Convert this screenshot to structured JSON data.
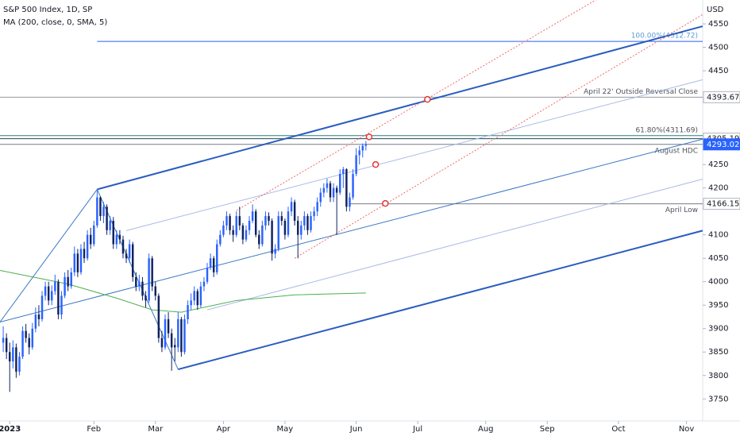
{
  "chart_data": {
    "type": "candlestick",
    "title": "S&P 500 Index, 1D, SP",
    "currency": "USD",
    "up_color": "#2962ff",
    "down_color": "#0f2260",
    "xlim": [
      -1,
      216
    ],
    "ylim": [
      3703,
      4601
    ],
    "xticks": [
      {
        "value": 2,
        "label": "2023"
      },
      {
        "value": 28,
        "label": "Feb"
      },
      {
        "value": 47,
        "label": "Mar"
      },
      {
        "value": 68,
        "label": "Apr"
      },
      {
        "value": 87,
        "label": "May"
      },
      {
        "value": 109,
        "label": "Jun"
      },
      {
        "value": 128,
        "label": "Jul"
      },
      {
        "value": 149,
        "label": "Aug"
      },
      {
        "value": 168,
        "label": "Sep"
      },
      {
        "value": 190,
        "label": "Oct"
      },
      {
        "value": 211,
        "label": "Nov"
      }
    ],
    "yticks": [
      3750,
      3800,
      3850,
      3900,
      3950,
      4000,
      4050,
      4100,
      4200,
      4250,
      4450,
      4500,
      4550
    ],
    "ohlc": [
      [
        3870,
        3905,
        3850,
        3880
      ],
      [
        3880,
        3890,
        3835,
        3850
      ],
      [
        3850,
        3870,
        3765,
        3830
      ],
      [
        3830,
        3875,
        3815,
        3860
      ],
      [
        3860,
        3868,
        3795,
        3808
      ],
      [
        3808,
        3850,
        3800,
        3840
      ],
      [
        3840,
        3905,
        3835,
        3895
      ],
      [
        3895,
        3910,
        3870,
        3880
      ],
      [
        3880,
        3890,
        3845,
        3860
      ],
      [
        3860,
        3912,
        3855,
        3900
      ],
      [
        3900,
        3945,
        3892,
        3930
      ],
      [
        3930,
        3950,
        3905,
        3920
      ],
      [
        3920,
        3980,
        3915,
        3970
      ],
      [
        3970,
        4000,
        3960,
        3990
      ],
      [
        3990,
        4000,
        3950,
        3960
      ],
      [
        3960,
        3992,
        3950,
        3980
      ],
      [
        3980,
        4015,
        3972,
        4000
      ],
      [
        4000,
        4005,
        3920,
        3930
      ],
      [
        3930,
        3980,
        3920,
        3970
      ],
      [
        3970,
        4020,
        3965,
        4010
      ],
      [
        4010,
        4025,
        3980,
        3990
      ],
      [
        3990,
        4030,
        3985,
        4020
      ],
      [
        4020,
        4075,
        4012,
        4060
      ],
      [
        4060,
        4070,
        4010,
        4020
      ],
      [
        4020,
        4080,
        4015,
        4070
      ],
      [
        4070,
        4085,
        4040,
        4050
      ],
      [
        4050,
        4110,
        4045,
        4100
      ],
      [
        4100,
        4115,
        4070,
        4080
      ],
      [
        4080,
        4130,
        4075,
        4120
      ],
      [
        4120,
        4195,
        4115,
        4180
      ],
      [
        4180,
        4182,
        4130,
        4140
      ],
      [
        4140,
        4170,
        4125,
        4160
      ],
      [
        4160,
        4165,
        4100,
        4110
      ],
      [
        4110,
        4140,
        4100,
        4130
      ],
      [
        4130,
        4138,
        4070,
        4080
      ],
      [
        4080,
        4110,
        4070,
        4100
      ],
      [
        4100,
        4110,
        4080,
        4090
      ],
      [
        4090,
        4098,
        4050,
        4060
      ],
      [
        4060,
        4070,
        4040,
        4050
      ],
      [
        4050,
        4090,
        4040,
        4080
      ],
      [
        4080,
        4085,
        4000,
        4010
      ],
      [
        4010,
        4020,
        3980,
        3990
      ],
      [
        3990,
        4015,
        3980,
        4000
      ],
      [
        4000,
        4010,
        3960,
        3970
      ],
      [
        3970,
        3980,
        3945,
        3960
      ],
      [
        3960,
        4060,
        3955,
        4050
      ],
      [
        4050,
        4055,
        3980,
        3990
      ],
      [
        3990,
        4000,
        3960,
        3970
      ],
      [
        3970,
        3975,
        3870,
        3880
      ],
      [
        3880,
        3895,
        3850,
        3860
      ],
      [
        3860,
        3930,
        3855,
        3920
      ],
      [
        3920,
        3935,
        3880,
        3890
      ],
      [
        3890,
        3900,
        3810,
        3860
      ],
      [
        3865,
        3880,
        3830,
        3860
      ],
      [
        3860,
        3935,
        3850,
        3920
      ],
      [
        3920,
        3925,
        3840,
        3850
      ],
      [
        3850,
        3930,
        3845,
        3920
      ],
      [
        3920,
        3960,
        3910,
        3950
      ],
      [
        3950,
        3975,
        3940,
        3960
      ],
      [
        3960,
        3990,
        3950,
        3980
      ],
      [
        3980,
        3985,
        3940,
        3950
      ],
      [
        3950,
        4000,
        3945,
        3990
      ],
      [
        3990,
        4010,
        3980,
        4000
      ],
      [
        4000,
        4040,
        3995,
        4030
      ],
      [
        4030,
        4060,
        4025,
        4050
      ],
      [
        4050,
        4055,
        4010,
        4020
      ],
      [
        4020,
        4090,
        4015,
        4080
      ],
      [
        4080,
        4110,
        4075,
        4100
      ],
      [
        4100,
        4130,
        4095,
        4120
      ],
      [
        4120,
        4150,
        4110,
        4140
      ],
      [
        4140,
        4145,
        4100,
        4110
      ],
      [
        4110,
        4120,
        4085,
        4100
      ],
      [
        4100,
        4150,
        4095,
        4140
      ],
      [
        4140,
        4160,
        4110,
        4120
      ],
      [
        4120,
        4125,
        4080,
        4090
      ],
      [
        4090,
        4120,
        4085,
        4110
      ],
      [
        4110,
        4140,
        4100,
        4130
      ],
      [
        4130,
        4165,
        4125,
        4150
      ],
      [
        4150,
        4155,
        4095,
        4100
      ],
      [
        4100,
        4110,
        4070,
        4080
      ],
      [
        4080,
        4130,
        4075,
        4120
      ],
      [
        4120,
        4150,
        4110,
        4140
      ],
      [
        4140,
        4148,
        4120,
        4130
      ],
      [
        4130,
        4135,
        4045,
        4060
      ],
      [
        4060,
        4080,
        4050,
        4070
      ],
      [
        4070,
        4150,
        4065,
        4140
      ],
      [
        4140,
        4150,
        4120,
        4130
      ],
      [
        4130,
        4135,
        4090,
        4100
      ],
      [
        4100,
        4160,
        4095,
        4150
      ],
      [
        4150,
        4180,
        4140,
        4170
      ],
      [
        4170,
        4175,
        4120,
        4130
      ],
      [
        4130,
        4140,
        4050,
        4100
      ],
      [
        4100,
        4130,
        4090,
        4120
      ],
      [
        4120,
        4150,
        4110,
        4140
      ],
      [
        4140,
        4145,
        4100,
        4110
      ],
      [
        4110,
        4150,
        4105,
        4140
      ],
      [
        4140,
        4160,
        4130,
        4150
      ],
      [
        4150,
        4180,
        4140,
        4170
      ],
      [
        4170,
        4200,
        4160,
        4190
      ],
      [
        4190,
        4210,
        4180,
        4200
      ],
      [
        4200,
        4220,
        4190,
        4210
      ],
      [
        4210,
        4215,
        4170,
        4180
      ],
      [
        4180,
        4210,
        4170,
        4200
      ],
      [
        4200,
        4205,
        4100,
        4190
      ],
      [
        4190,
        4240,
        4185,
        4230
      ],
      [
        4230,
        4245,
        4200,
        4240
      ],
      [
        4240,
        4242,
        4150,
        4160
      ],
      [
        4160,
        4190,
        4150,
        4180
      ],
      [
        4180,
        4240,
        4175,
        4230
      ],
      [
        4230,
        4285,
        4225,
        4270
      ],
      [
        4270,
        4290,
        4250,
        4280
      ],
      [
        4280,
        4295,
        4265,
        4290
      ],
      [
        4290,
        4300,
        4280,
        4293
      ]
    ],
    "ma": {
      "name": "MA (200, close, 0, SMA, 5)",
      "color": "#4caf50",
      "x": [
        -1,
        20,
        35,
        46,
        55,
        72,
        90,
        112
      ],
      "values": [
        4024,
        3995,
        3965,
        3940,
        3935,
        3960,
        3972,
        3976
      ]
    },
    "levels": [
      {
        "value": 4512.72,
        "from": 29,
        "color": "#2962ff",
        "note": "100.00%(4512.72)"
      },
      {
        "value": 4393.67,
        "from": -1,
        "color": "#9598a1",
        "note": "April 22' Outside Reversal Close"
      },
      {
        "value": 4311.69,
        "from": -1,
        "color": "#2e7d7d",
        "note": "61.80%(4311.69)"
      },
      {
        "value": 4305.19,
        "from": -1,
        "color": "#1d4b5a"
      },
      {
        "value": 4293.02,
        "from": -1,
        "color": "#787b86",
        "note": "August HDC"
      },
      {
        "value": 4166.15,
        "from": 107,
        "color": "#787b86",
        "note": "April Low"
      }
    ],
    "tags": [
      {
        "value": 4393.67,
        "color": "#ffffff"
      },
      {
        "value": 4305.19,
        "color": "#ffffff"
      },
      {
        "value": 4293.02,
        "color": "#2962ff"
      },
      {
        "value": 4166.15,
        "color": "#ffffff"
      }
    ],
    "trendlines": [
      {
        "x": [
          29,
          216
        ],
        "y": [
          4197,
          4545
        ],
        "color": "#2a5cbf",
        "width": 2
      },
      {
        "x": [
          54,
          216
        ],
        "y": [
          3813,
          4109
        ],
        "color": "#2a5cbf",
        "width": 2
      },
      {
        "x": [
          -1,
          216
        ],
        "y": [
          3914,
          4304
        ],
        "color": "#3b78c4",
        "width": 1
      },
      {
        "x": [
          -1,
          29
        ],
        "y": [
          3914,
          4197
        ],
        "color": "#3b78c4",
        "width": 1
      },
      {
        "x": [
          29,
          54
        ],
        "y": [
          4197,
          3813
        ],
        "color": "#3b78c4",
        "width": 1
      },
      {
        "x": [
          38,
          216
        ],
        "y": [
          4109,
          4431
        ],
        "color": "#a9bbe6",
        "width": 1
      },
      {
        "x": [
          63,
          216
        ],
        "y": [
          3940,
          4219
        ],
        "color": "#a9bbe6",
        "width": 1
      },
      {
        "x": [
          72,
          183
        ],
        "y": [
          4152,
          4601
        ],
        "color": "#f06a6a",
        "width": 1,
        "dash": true
      },
      {
        "x": [
          90,
          216
        ],
        "y": [
          4050,
          4570
        ],
        "color": "#f06a6a",
        "width": 1,
        "dash": true
      }
    ],
    "markers": {
      "color": "#e53935",
      "x": [
        131,
        113,
        115,
        118
      ],
      "values": [
        4389,
        4309,
        4250,
        4167
      ]
    }
  }
}
